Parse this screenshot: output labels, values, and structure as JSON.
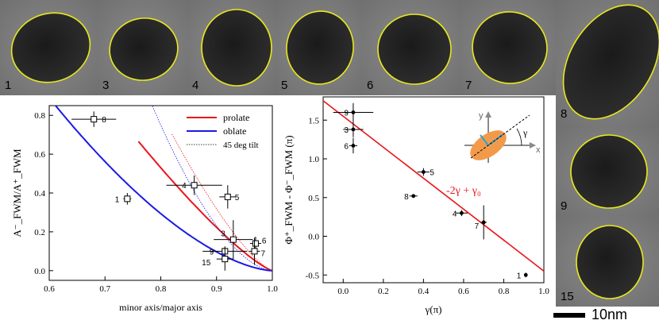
{
  "micrographs": [
    {
      "label": "1"
    },
    {
      "label": "3"
    },
    {
      "label": "4"
    },
    {
      "label": "5"
    },
    {
      "label": "6"
    },
    {
      "label": "7"
    },
    {
      "label": "8"
    },
    {
      "label": "9"
    },
    {
      "label": "15"
    }
  ],
  "scale_bar": {
    "label": "10nm"
  },
  "outline_color": "#e8e820",
  "chart_data": [
    {
      "type": "scatter",
      "xlabel": "minor axis/major axis",
      "ylabel": "A⁻_FWM/A⁺_FWM",
      "xlim": [
        0.6,
        1.0
      ],
      "ylim": [
        -0.05,
        0.85
      ],
      "xticks": [
        "0.6",
        "0.7",
        "0.8",
        "0.9",
        "1.0"
      ],
      "yticks": [
        "0.0",
        "0.2",
        "0.4",
        "0.6",
        "0.8"
      ],
      "legend": [
        "prolate",
        "oblate",
        "45 deg tilt"
      ],
      "colors": {
        "prolate": "#e8161b",
        "oblate": "#1a1ae6"
      },
      "points": [
        {
          "label": "8",
          "x": 0.68,
          "y": 0.78,
          "xerr": 0.04,
          "yerr": 0.04
        },
        {
          "label": "1",
          "x": 0.74,
          "y": 0.37,
          "xerr": 0.007,
          "yerr": 0.03
        },
        {
          "label": "4",
          "x": 0.86,
          "y": 0.44,
          "xerr": 0.05,
          "yerr": 0.05
        },
        {
          "label": "5",
          "x": 0.92,
          "y": 0.38,
          "xerr": 0.015,
          "yerr": 0.06
        },
        {
          "label": "3",
          "x": 0.93,
          "y": 0.16,
          "xerr": 0.035,
          "yerr": 0.1
        },
        {
          "label": "6",
          "x": 0.97,
          "y": 0.14,
          "xerr": 0.01,
          "yerr": 0.035
        },
        {
          "label": "7",
          "x": 0.968,
          "y": 0.1,
          "xerr": 0.01,
          "yerr": 0.07
        },
        {
          "label": "9",
          "x": 0.915,
          "y": 0.1,
          "xerr": 0.04,
          "yerr": 0.025
        },
        {
          "label": "15",
          "x": 0.915,
          "y": 0.06,
          "xerr": 0.015,
          "yerr": 0.06
        }
      ]
    },
    {
      "type": "scatter",
      "xlabel": "γ(π)",
      "ylabel": "Φ⁺_FWM - Φ⁻_FWM (π)",
      "xlim": [
        -0.1,
        1.0
      ],
      "ylim": [
        -0.6,
        1.8
      ],
      "xticks": [
        "0.0",
        "0.2",
        "0.4",
        "0.6",
        "0.8",
        "1.0"
      ],
      "yticks": [
        "-0.5",
        "0.0",
        "0.5",
        "1.0",
        "1.5"
      ],
      "fit_label": "-2γ + γ₀",
      "fit": {
        "slope": -2,
        "intercept": 1.55
      },
      "inset": {
        "x_axis": "x",
        "y_axis": "y",
        "angle_label": "γ"
      },
      "points": [
        {
          "label": "9",
          "x": 0.05,
          "y": 1.6,
          "xerr": 0.1,
          "yerr": 0.12
        },
        {
          "label": "3",
          "x": 0.05,
          "y": 1.38,
          "xerr": 0.05,
          "yerr": 0.1
        },
        {
          "label": "6",
          "x": 0.05,
          "y": 1.17,
          "xerr": 0.02,
          "yerr": 0.1
        },
        {
          "label": "5",
          "x": 0.4,
          "y": 0.83,
          "xerr": 0.03,
          "yerr": 0.05
        },
        {
          "label": "8",
          "x": 0.35,
          "y": 0.52,
          "xerr": 0.02,
          "yerr": 0.02
        },
        {
          "label": "4",
          "x": 0.59,
          "y": 0.3,
          "xerr": 0.03,
          "yerr": 0.04
        },
        {
          "label": "7",
          "x": 0.7,
          "y": 0.18,
          "xerr": 0.015,
          "yerr": 0.22
        },
        {
          "label": "1",
          "x": 0.91,
          "y": -0.5,
          "xerr": 0.005,
          "yerr": 0.03
        }
      ]
    }
  ]
}
